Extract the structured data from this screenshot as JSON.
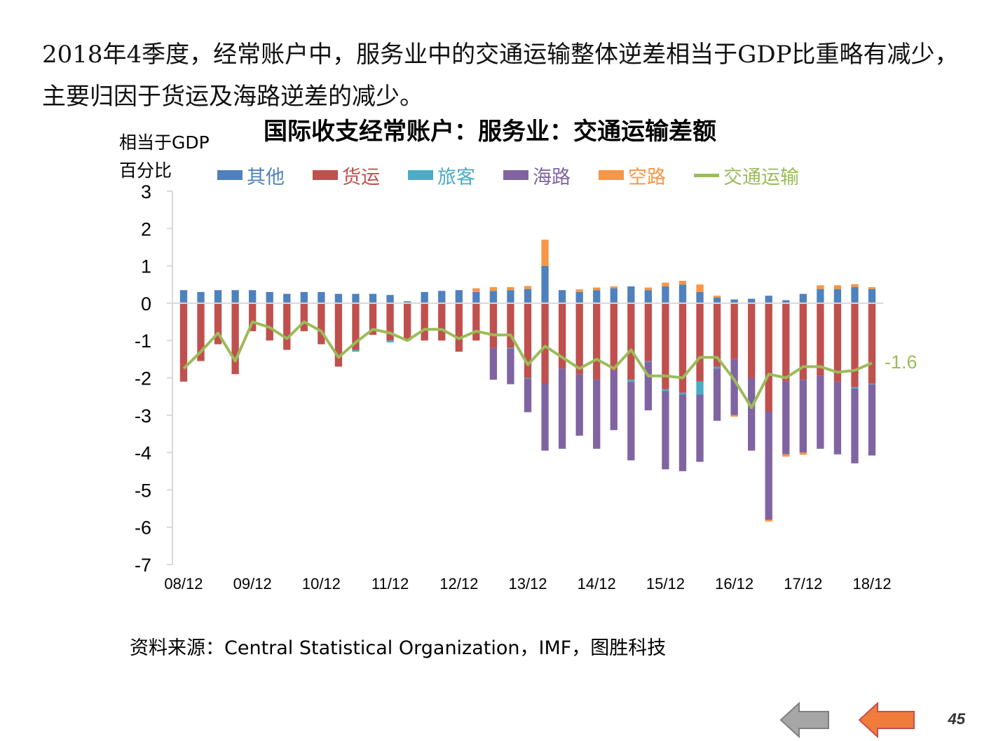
{
  "headline": "2018年4季度，经常账户中，服务业中的交通运输整体逆差相当于GDP比重略有减少，主要归因于货运及海路逆差的减少。",
  "page_number": "45",
  "source": "资料来源：Central Statistical Organization，IMF，图胜科技",
  "colors": {
    "other": "#4f81bd",
    "freight": "#c0504d",
    "passenger": "#4bacc6",
    "sea": "#8064a2",
    "air": "#f79646",
    "total": "#9bbb59",
    "axis": "#d9d9d9",
    "nav_prev": "#a6a6a6",
    "nav_next": "#f07c3c"
  },
  "nav": {
    "prev_icon": "arrow-left-icon",
    "next_icon": "arrow-left-icon"
  },
  "chart_data": {
    "type": "bar",
    "stacked": true,
    "title": "国际收支经常账户：服务业：交通运输差额",
    "ylabel_line1": "相当于GDP",
    "ylabel_line2": "百分比",
    "ylim": [
      -7,
      3
    ],
    "yticks": [
      3,
      2,
      1,
      0,
      -1,
      -2,
      -3,
      -4,
      -5,
      -6,
      -7
    ],
    "xtick_labels": [
      "08/12",
      "09/12",
      "10/12",
      "11/12",
      "12/12",
      "13/12",
      "14/12",
      "15/12",
      "16/12",
      "17/12",
      "18/12"
    ],
    "xtick_every": 4,
    "end_label": "-1.6",
    "periods": [
      "08/12",
      "09/03",
      "09/06",
      "09/09",
      "09/12",
      "10/03",
      "10/06",
      "10/09",
      "10/12",
      "11/03",
      "11/06",
      "11/09",
      "11/12",
      "12/03",
      "12/06",
      "12/09",
      "12/12",
      "13/03",
      "13/06",
      "13/09",
      "13/12",
      "14/03",
      "14/06",
      "14/09",
      "14/12",
      "15/03",
      "15/06",
      "15/09",
      "15/12",
      "16/03",
      "16/06",
      "16/09",
      "16/12",
      "17/03",
      "17/06",
      "17/09",
      "17/12",
      "18/03",
      "18/06",
      "18/09",
      "18/12"
    ],
    "series": [
      {
        "key": "other",
        "name": "其他",
        "kind": "bar",
        "values": [
          0.35,
          0.3,
          0.35,
          0.35,
          0.35,
          0.3,
          0.25,
          0.3,
          0.3,
          0.25,
          0.25,
          0.25,
          0.22,
          0.05,
          0.3,
          0.33,
          0.35,
          0.3,
          0.33,
          0.35,
          0.38,
          1.0,
          0.35,
          0.3,
          0.35,
          0.4,
          0.45,
          0.35,
          0.45,
          0.5,
          0.3,
          0.15,
          0.1,
          0.12,
          0.2,
          0.08,
          0.25,
          0.38,
          0.38,
          0.43,
          0.38
        ]
      },
      {
        "key": "freight",
        "name": "货运",
        "kind": "bar",
        "values": [
          -2.1,
          -1.55,
          -1.1,
          -1.9,
          -0.75,
          -1.0,
          -1.25,
          -0.75,
          -1.1,
          -1.7,
          -1.25,
          -0.85,
          -1.0,
          -1.0,
          -1.0,
          -1.0,
          -1.3,
          -1.0,
          -1.2,
          -1.2,
          -2.0,
          -2.15,
          -1.75,
          -1.9,
          -2.05,
          -1.8,
          -2.05,
          -1.55,
          -2.3,
          -2.4,
          -2.1,
          -1.7,
          -1.5,
          -2.0,
          -2.9,
          -2.1,
          -2.05,
          -1.95,
          -2.1,
          -2.25,
          -2.15
        ]
      },
      {
        "key": "passenger",
        "name": "旅客",
        "kind": "bar",
        "values": [
          0,
          0,
          0,
          0,
          0,
          0,
          0,
          0,
          0,
          0,
          -0.05,
          0,
          -0.05,
          0,
          0,
          0,
          0,
          0,
          0,
          -0.02,
          -0.02,
          0,
          0,
          0,
          0,
          0,
          -0.06,
          -0.02,
          -0.05,
          -0.05,
          -0.35,
          -0.05,
          0,
          0,
          0,
          0,
          0,
          0,
          0,
          -0.04,
          -0.03
        ]
      },
      {
        "key": "sea",
        "name": "海路",
        "kind": "bar",
        "values": [
          0,
          0,
          0,
          0,
          0,
          0,
          0,
          0,
          0,
          0,
          0,
          0,
          0,
          0,
          0,
          0,
          0,
          0,
          -0.85,
          -0.95,
          -0.9,
          -1.8,
          -2.15,
          -1.65,
          -1.85,
          -1.6,
          -2.1,
          -1.3,
          -2.1,
          -2.05,
          -1.8,
          -1.4,
          -1.5,
          -1.95,
          -2.9,
          -1.95,
          -1.95,
          -1.95,
          -1.95,
          -2.0,
          -1.9
        ]
      },
      {
        "key": "air",
        "name": "空路",
        "kind": "bar",
        "values": [
          0,
          0,
          0,
          0,
          0,
          0,
          0,
          0,
          0,
          0,
          0,
          0,
          0,
          0,
          0,
          0,
          0,
          0.1,
          0.1,
          0.08,
          0.08,
          0.7,
          0,
          0.07,
          0.07,
          0.05,
          0,
          0.07,
          0.1,
          0.1,
          0.2,
          0.05,
          -0.04,
          0,
          -0.05,
          -0.06,
          -0.06,
          0.1,
          0.1,
          0.08,
          0.05
        ]
      },
      {
        "key": "total",
        "name": "交通运输",
        "kind": "line",
        "values": [
          -1.75,
          -1.3,
          -0.8,
          -1.55,
          -0.5,
          -0.65,
          -0.95,
          -0.5,
          -0.75,
          -1.45,
          -1.05,
          -0.7,
          -0.8,
          -1.0,
          -0.7,
          -0.7,
          -0.95,
          -0.75,
          -0.85,
          -0.85,
          -1.65,
          -1.15,
          -1.45,
          -1.75,
          -1.5,
          -1.75,
          -1.25,
          -1.95,
          -1.95,
          -2.0,
          -1.45,
          -1.45,
          -2.05,
          -2.8,
          -1.9,
          -2.0,
          -1.7,
          -1.7,
          -1.85,
          -1.8,
          -1.6
        ]
      }
    ]
  }
}
